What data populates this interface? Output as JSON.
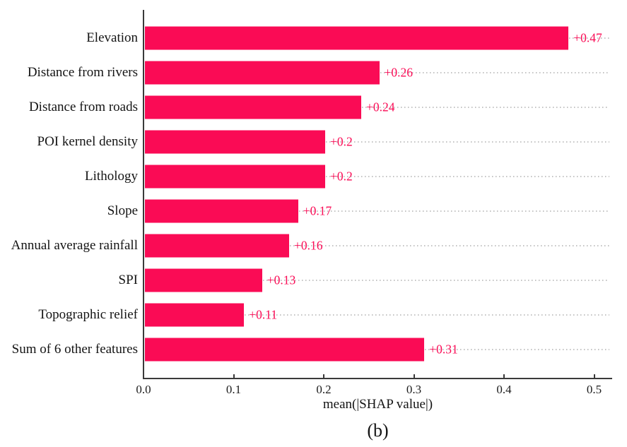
{
  "figure": {
    "caption": "(b)",
    "background": "#ffffff"
  },
  "chart_data": {
    "type": "bar",
    "orientation": "horizontal",
    "title": "",
    "xlabel": "mean(|SHAP value|)",
    "ylabel": "",
    "categories": [
      "Elevation",
      "Distance from rivers",
      "Distance from roads",
      "POI kernel density",
      "Lithology",
      "Slope",
      "Annual average rainfall",
      "SPI",
      "Topographic relief",
      "Sum of 6 other features"
    ],
    "values": [
      0.47,
      0.26,
      0.24,
      0.2,
      0.2,
      0.17,
      0.16,
      0.13,
      0.11,
      0.31
    ],
    "value_labels": [
      "+0.47",
      "+0.26",
      "+0.24",
      "+0.2",
      "+0.2",
      "+0.17",
      "+0.16",
      "+0.13",
      "+0.11",
      "+0.31"
    ],
    "xticks": [
      "0.0",
      "0.1",
      "0.2",
      "0.3",
      "0.4",
      "0.5"
    ],
    "xtick_values": [
      0.0,
      0.1,
      0.2,
      0.3,
      0.4,
      0.5
    ],
    "xlim": [
      0,
      0.52
    ],
    "grid": "dotted horizontal line per bar, from bar end to right edge",
    "legend": "none",
    "colors": {
      "bar": "#fa0b55",
      "value_label": "#fa0b55",
      "grid_dots": "#c3c3c3",
      "axis": "#3a3a3a",
      "text": "#141414"
    }
  }
}
